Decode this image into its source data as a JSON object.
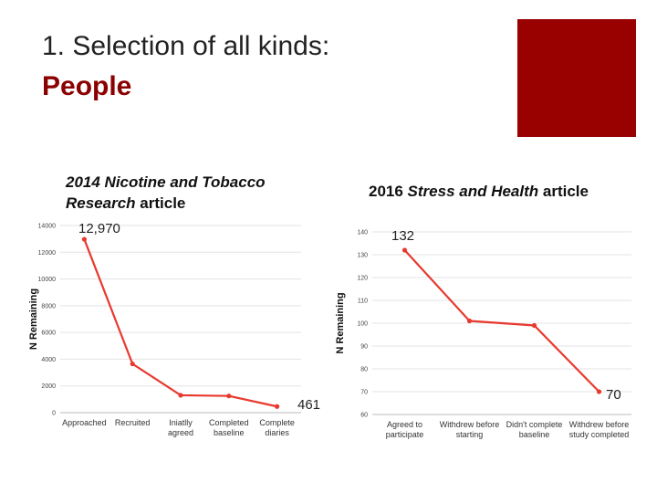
{
  "slide": {
    "title_line1": "1. Selection of all kinds:",
    "title_line2": "People",
    "accent_color": "#990000"
  },
  "captions": {
    "left_italic": "2014 Nicotine and Tobacco Research",
    "left_rest": " article",
    "right_prefix": "2016 ",
    "right_italic": "Stress and Health",
    "right_rest": " article"
  },
  "annotations": {
    "left_start": "12,970",
    "left_end": "461",
    "right_start": "132",
    "right_end": "70"
  },
  "chart_data": [
    {
      "type": "line",
      "title": "",
      "xlabel": "",
      "ylabel": "N Remaining",
      "ylim": [
        0,
        14000
      ],
      "yticks": [
        "0",
        "2000",
        "4000",
        "6000",
        "8000",
        "10000",
        "12000",
        "14000"
      ],
      "categories": [
        "Approached",
        "Recruited",
        "Iniatlly agreed",
        "Completed baseline",
        "Complete diaries"
      ],
      "values": [
        12970,
        3650,
        1300,
        1250,
        461
      ],
      "grid": true,
      "color": "#e8392e"
    },
    {
      "type": "line",
      "title": "",
      "xlabel": "",
      "ylabel": "N Remaining",
      "ylim": [
        60,
        140
      ],
      "yticks": [
        "60",
        "70",
        "80",
        "90",
        "100",
        "110",
        "120",
        "130",
        "140"
      ],
      "categories": [
        "Agreed to participate",
        "Withdrew before starting",
        "Didn't complete baseline",
        "Withdrew before study completed"
      ],
      "values": [
        132,
        101,
        99,
        70
      ],
      "grid": true,
      "color": "#e8392e"
    }
  ]
}
